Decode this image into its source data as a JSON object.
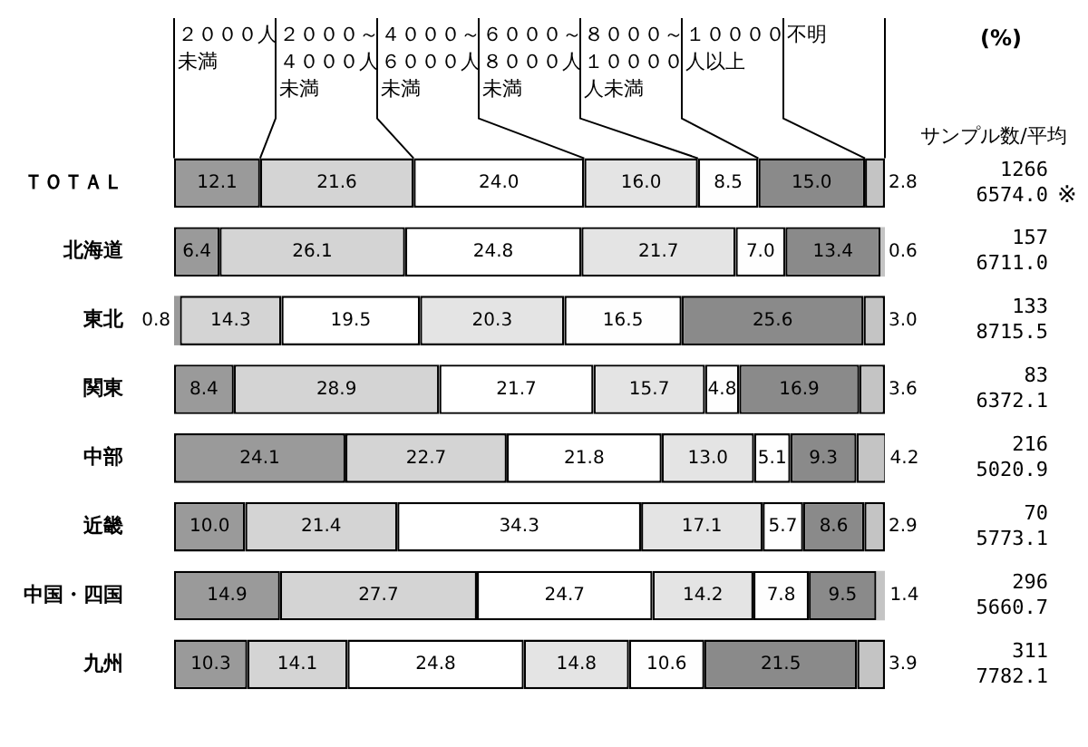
{
  "chart_data": {
    "type": "bar",
    "orientation": "horizontal",
    "stacked": true,
    "legend": "top",
    "grid": false,
    "tick_labels": "y",
    "xlim": [
      0,
      100
    ],
    "categories": [
      "ＴＯＴＡＬ",
      "北海道",
      "東北",
      "関東",
      "中部",
      "近畿",
      "中国・四国",
      "九州"
    ],
    "series": [
      {
        "name": "２０００人未満",
        "color": "#9a9a9a",
        "values": [
          12.1,
          6.4,
          0.8,
          8.4,
          24.1,
          10.0,
          14.9,
          10.3
        ],
        "value_labels": [
          "12.1",
          "6.4",
          "0.8",
          "8.4",
          "24.1",
          "10.0",
          "14.9",
          "10.3"
        ]
      },
      {
        "name": "２０００～４０００人未満",
        "color": "#d4d4d4",
        "values": [
          21.6,
          26.1,
          14.3,
          28.9,
          22.7,
          21.4,
          27.7,
          14.1
        ],
        "value_labels": [
          "21.6",
          "26.1",
          "14.3",
          "28.9",
          "22.7",
          "21.4",
          "27.7",
          "14.1"
        ]
      },
      {
        "name": "４０００～６０００人未満",
        "color": "#ffffff",
        "values": [
          24.0,
          24.8,
          19.5,
          21.7,
          21.8,
          34.3,
          24.7,
          24.8
        ],
        "value_labels": [
          "24.0",
          "24.8",
          "19.5",
          "21.7",
          "21.8",
          "34.3",
          "24.7",
          "24.8"
        ]
      },
      {
        "name": "６０００～８０００人未満",
        "color": "#e4e4e4",
        "values": [
          16.0,
          21.7,
          20.3,
          15.7,
          13.0,
          17.1,
          14.2,
          14.8
        ],
        "value_labels": [
          "16.0",
          "21.7",
          "20.3",
          "15.7",
          "13.0",
          "17.1",
          "14.2",
          "14.8"
        ]
      },
      {
        "name": "８０００～１００００人未満",
        "color": "#fefefe",
        "values": [
          8.5,
          7.0,
          16.5,
          4.8,
          5.1,
          5.7,
          7.8,
          10.6
        ],
        "value_labels": [
          "8.5",
          "7.0",
          "16.5",
          "4.8",
          "5.1",
          "5.7",
          "7.8",
          "10.6"
        ]
      },
      {
        "name": "１００００人以上",
        "color": "#8a8a8a",
        "values": [
          15.0,
          13.4,
          25.6,
          16.9,
          9.3,
          8.6,
          9.5,
          21.5
        ],
        "value_labels": [
          "15.0",
          "13.4",
          "25.6",
          "16.9",
          "9.3",
          "8.6",
          "9.5",
          "21.5"
        ]
      },
      {
        "name": "不明",
        "color": "#c4c4c4",
        "values": [
          2.8,
          0.6,
          3.0,
          3.6,
          4.2,
          2.9,
          1.4,
          3.9
        ],
        "value_labels": [
          "2.8",
          "0.6",
          "3.0",
          "3.6",
          "4.2",
          "2.9",
          "1.4",
          "3.9"
        ]
      }
    ],
    "annotations": [
      "(%)",
      "サンプル数/平均",
      "1266",
      "6574.0",
      "157",
      "6711.0",
      "133",
      "8715.5",
      "83",
      "6372.1",
      "216",
      "5020.9",
      "70",
      "5773.1",
      "296",
      "5660.7",
      "311",
      "7782.1",
      "※"
    ]
  }
}
